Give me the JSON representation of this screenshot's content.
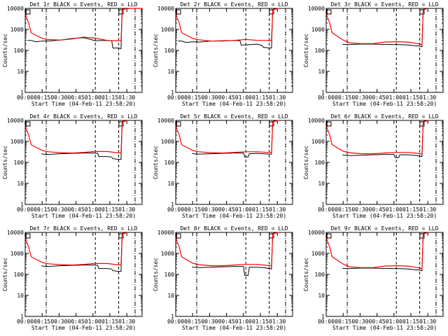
{
  "chart_data": [
    {
      "type": "line",
      "title": "Det 1r BLACK = Events, RED = LLD",
      "xlabel": "Start Time (04-Feb-11 23:58:20)",
      "ylabel": "Counts/sec",
      "x_ticks": [
        "00:00",
        "00:15",
        "00:30",
        "00:45",
        "01:00",
        "01:15",
        "01:30"
      ],
      "y_ticks": [
        "1",
        "10",
        "100",
        "1000",
        "10000"
      ],
      "y_scale": "log",
      "ylim": [
        1,
        10000
      ],
      "series": [
        {
          "color": "#000000",
          "x": [
            2,
            5,
            9,
            15,
            20,
            30,
            40,
            50,
            60,
            70,
            74,
            75,
            80,
            82,
            83,
            90,
            95,
            100
          ],
          "y": [
            300,
            300,
            260,
            280,
            280,
            310,
            370,
            400,
            290,
            300,
            290,
            130,
            130,
            120,
            9800,
            10000,
            10000,
            10000
          ]
        },
        {
          "color": "#ff0000",
          "x": [
            0,
            3,
            5,
            10,
            15,
            20,
            30,
            40,
            50,
            60,
            70,
            78,
            80,
            82,
            83,
            90,
            95,
            100
          ],
          "y": [
            5500,
            2000,
            700,
            500,
            360,
            330,
            310,
            350,
            430,
            380,
            300,
            290,
            300,
            280,
            9000,
            10000,
            10000,
            10000
          ]
        }
      ]
    },
    {
      "type": "line",
      "title": "Det 2r BLACK = Events, RED = LLD",
      "xlabel": "Start Time (04-Feb-11 23:58:20)",
      "ylabel": "Counts/sec",
      "x_ticks": [
        "00:00",
        "00:15",
        "00:30",
        "00:45",
        "01:00",
        "01:15",
        "01:30"
      ],
      "y_ticks": [
        "1",
        "10",
        "100",
        "1000",
        "10000"
      ],
      "y_scale": "log",
      "ylim": [
        1,
        10000
      ],
      "series": [
        {
          "color": "#000000",
          "x": [
            2,
            5,
            9,
            15,
            20,
            30,
            40,
            50,
            55,
            56,
            60,
            70,
            74,
            75,
            80,
            82,
            83,
            88
          ],
          "y": [
            280,
            280,
            240,
            260,
            250,
            280,
            290,
            300,
            290,
            180,
            180,
            200,
            170,
            140,
            130,
            130,
            9000,
            10000
          ]
        },
        {
          "color": "#ff0000",
          "x": [
            0,
            3,
            5,
            10,
            15,
            20,
            30,
            40,
            50,
            60,
            70,
            78,
            80,
            82,
            83,
            88
          ],
          "y": [
            5500,
            2000,
            700,
            500,
            360,
            320,
            280,
            280,
            300,
            330,
            300,
            300,
            290,
            300,
            8500,
            10000
          ]
        }
      ]
    },
    {
      "type": "line",
      "title": "Det 3r BLACK = Events, RED = LLD",
      "xlabel": "Start Time (04-Feb-11 23:58:20)",
      "ylabel": "Counts/sec",
      "x_ticks": [
        "00:00",
        "00:15",
        "00:30",
        "00:45",
        "01:00",
        "01:15",
        "01:30"
      ],
      "y_ticks": [
        "1",
        "10",
        "100",
        "1000",
        "10000"
      ],
      "y_scale": "log",
      "ylim": [
        1,
        10000
      ],
      "series": [
        {
          "color": "#000000",
          "x": [
            14,
            15,
            20,
            30,
            40,
            50,
            60,
            70,
            75,
            80,
            82,
            83,
            87
          ],
          "y": [
            200,
            190,
            190,
            200,
            200,
            190,
            190,
            180,
            170,
            160,
            150,
            9000,
            10000
          ]
        },
        {
          "color": "#ff0000",
          "x": [
            0,
            3,
            5,
            10,
            15,
            20,
            30,
            40,
            50,
            60,
            70,
            78,
            80,
            82,
            83,
            87
          ],
          "y": [
            5500,
            2000,
            700,
            450,
            300,
            230,
            210,
            210,
            250,
            260,
            250,
            210,
            200,
            190,
            8500,
            10000
          ]
        }
      ]
    },
    {
      "type": "line",
      "title": "Det 4r BLACK = Events, RED = LLD",
      "xlabel": "Start Time (04-Feb-11 23:58:20)",
      "ylabel": "Counts/sec",
      "x_ticks": [
        "00:00",
        "00:15",
        "00:30",
        "00:45",
        "01:00",
        "01:15",
        "01:30"
      ],
      "y_ticks": [
        "1",
        "10",
        "100",
        "1000",
        "10000"
      ],
      "y_scale": "log",
      "ylim": [
        1,
        10000
      ],
      "series": [
        {
          "color": "#000000",
          "x": [
            14,
            15,
            20,
            30,
            40,
            50,
            60,
            62,
            63,
            70,
            74,
            75,
            80,
            82,
            83,
            88
          ],
          "y": [
            260,
            250,
            240,
            260,
            270,
            280,
            280,
            270,
            190,
            190,
            180,
            150,
            140,
            140,
            9000,
            10000
          ]
        },
        {
          "color": "#ff0000",
          "x": [
            0,
            3,
            5,
            10,
            15,
            20,
            30,
            40,
            50,
            60,
            70,
            78,
            80,
            82,
            83,
            88
          ],
          "y": [
            5500,
            2000,
            700,
            500,
            360,
            320,
            290,
            280,
            300,
            330,
            330,
            290,
            290,
            280,
            8500,
            10000
          ]
        }
      ]
    },
    {
      "type": "line",
      "title": "Det 5r BLACK = Events, RED = LLD",
      "xlabel": "Start Time (04-Feb-11 23:58:20)",
      "ylabel": "Counts/sec",
      "x_ticks": [
        "00:00",
        "00:15",
        "00:30",
        "00:45",
        "01:00",
        "01:15",
        "01:30"
      ],
      "y_ticks": [
        "1",
        "10",
        "100",
        "1000",
        "10000"
      ],
      "y_scale": "log",
      "ylim": [
        1,
        10000
      ],
      "series": [
        {
          "color": "#000000",
          "x": [
            14,
            15,
            20,
            30,
            40,
            50,
            58,
            59,
            62,
            63,
            70,
            74,
            75,
            80,
            82,
            83,
            88
          ],
          "y": [
            270,
            260,
            250,
            260,
            270,
            280,
            280,
            180,
            180,
            260,
            270,
            260,
            260,
            250,
            250,
            9000,
            10000
          ]
        },
        {
          "color": "#ff0000",
          "x": [
            0,
            3,
            5,
            10,
            15,
            20,
            30,
            40,
            50,
            60,
            70,
            78,
            80,
            82,
            83,
            88
          ],
          "y": [
            5500,
            2000,
            700,
            500,
            360,
            320,
            290,
            280,
            300,
            320,
            320,
            300,
            300,
            300,
            8500,
            10000
          ]
        }
      ]
    },
    {
      "type": "line",
      "title": "Det 6r BLACK = Events, RED = LLD",
      "xlabel": "Start Time (04-Feb-11 23:58:20)",
      "ylabel": "Counts/sec",
      "x_ticks": [
        "00:00",
        "00:15",
        "00:30",
        "00:45",
        "01:00",
        "01:15",
        "01:30"
      ],
      "y_ticks": [
        "1",
        "10",
        "100",
        "1000",
        "10000"
      ],
      "y_scale": "log",
      "ylim": [
        1,
        10000
      ],
      "series": [
        {
          "color": "#000000",
          "x": [
            14,
            15,
            20,
            30,
            40,
            50,
            58,
            59,
            62,
            63,
            70,
            74,
            75,
            80,
            82,
            83,
            88
          ],
          "y": [
            230,
            220,
            210,
            220,
            230,
            240,
            240,
            170,
            170,
            230,
            230,
            220,
            220,
            200,
            190,
            9000,
            10000
          ]
        },
        {
          "color": "#ff0000",
          "x": [
            0,
            3,
            5,
            10,
            15,
            20,
            30,
            40,
            50,
            60,
            70,
            78,
            80,
            82,
            83,
            88
          ],
          "y": [
            5500,
            2000,
            700,
            480,
            330,
            290,
            260,
            260,
            280,
            300,
            300,
            270,
            260,
            260,
            8500,
            10000
          ]
        }
      ]
    },
    {
      "type": "line",
      "title": "Det 7r BLACK = Events, RED = LLD",
      "xlabel": "Start Time (04-Feb-11 23:58:20)",
      "ylabel": "Counts/sec",
      "x_ticks": [
        "00:00",
        "00:15",
        "00:30",
        "00:45",
        "01:00",
        "01:15",
        "01:30"
      ],
      "y_ticks": [
        "1",
        "10",
        "100",
        "1000",
        "10000"
      ],
      "y_scale": "log",
      "ylim": [
        1,
        10000
      ],
      "series": [
        {
          "color": "#000000",
          "x": [
            14,
            15,
            20,
            30,
            40,
            50,
            60,
            62,
            63,
            70,
            74,
            75,
            80,
            82,
            83,
            88
          ],
          "y": [
            260,
            250,
            240,
            260,
            270,
            280,
            280,
            270,
            190,
            190,
            180,
            150,
            140,
            140,
            9000,
            10000
          ]
        },
        {
          "color": "#ff0000",
          "x": [
            0,
            3,
            5,
            10,
            15,
            20,
            30,
            40,
            50,
            60,
            70,
            78,
            80,
            82,
            83,
            88
          ],
          "y": [
            5500,
            2000,
            700,
            500,
            360,
            320,
            290,
            280,
            300,
            330,
            330,
            290,
            290,
            280,
            8500,
            10000
          ]
        }
      ]
    },
    {
      "type": "line",
      "title": "Det 8r BLACK = Events, RED = LLD",
      "xlabel": "Start Time (04-Feb-11 23:58:20)",
      "ylabel": "Counts/sec",
      "x_ticks": [
        "00:00",
        "00:15",
        "00:30",
        "00:45",
        "01:00",
        "01:15",
        "01:30"
      ],
      "y_ticks": [
        "1",
        "10",
        "100",
        "1000",
        "10000"
      ],
      "y_scale": "log",
      "ylim": [
        1,
        10000
      ],
      "series": [
        {
          "color": "#000000",
          "x": [
            14,
            15,
            20,
            30,
            40,
            50,
            58,
            59,
            62,
            63,
            70,
            74,
            75,
            80,
            82,
            83,
            88
          ],
          "y": [
            230,
            220,
            210,
            220,
            230,
            240,
            240,
            90,
            90,
            220,
            220,
            210,
            210,
            190,
            180,
            9000,
            10000
          ]
        },
        {
          "color": "#ff0000",
          "x": [
            0,
            3,
            5,
            10,
            15,
            20,
            30,
            40,
            50,
            60,
            70,
            78,
            80,
            82,
            83,
            88
          ],
          "y": [
            5500,
            2000,
            700,
            480,
            330,
            290,
            260,
            260,
            280,
            300,
            300,
            270,
            260,
            260,
            8500,
            10000
          ]
        }
      ]
    },
    {
      "type": "line",
      "title": "Det 9r BLACK = Events, RED = LLD",
      "xlabel": "Start Time (04-Feb-11 23:58:20)",
      "ylabel": "Counts/sec",
      "x_ticks": [
        "00:00",
        "00:15",
        "00:30",
        "00:45",
        "01:00",
        "01:15",
        "01:30"
      ],
      "y_ticks": [
        "1",
        "10",
        "100",
        "1000",
        "10000"
      ],
      "y_scale": "log",
      "ylim": [
        1,
        10000
      ],
      "series": [
        {
          "color": "#000000",
          "x": [
            14,
            15,
            20,
            30,
            40,
            50,
            60,
            70,
            75,
            80,
            82,
            83,
            88
          ],
          "y": [
            200,
            190,
            190,
            200,
            200,
            190,
            190,
            180,
            170,
            160,
            150,
            9000,
            10000
          ]
        },
        {
          "color": "#ff0000",
          "x": [
            0,
            3,
            5,
            10,
            15,
            20,
            30,
            40,
            50,
            60,
            70,
            78,
            80,
            82,
            83,
            88
          ],
          "y": [
            5500,
            2000,
            700,
            450,
            300,
            230,
            210,
            210,
            250,
            260,
            250,
            210,
            200,
            190,
            8500,
            10000
          ]
        }
      ]
    }
  ]
}
